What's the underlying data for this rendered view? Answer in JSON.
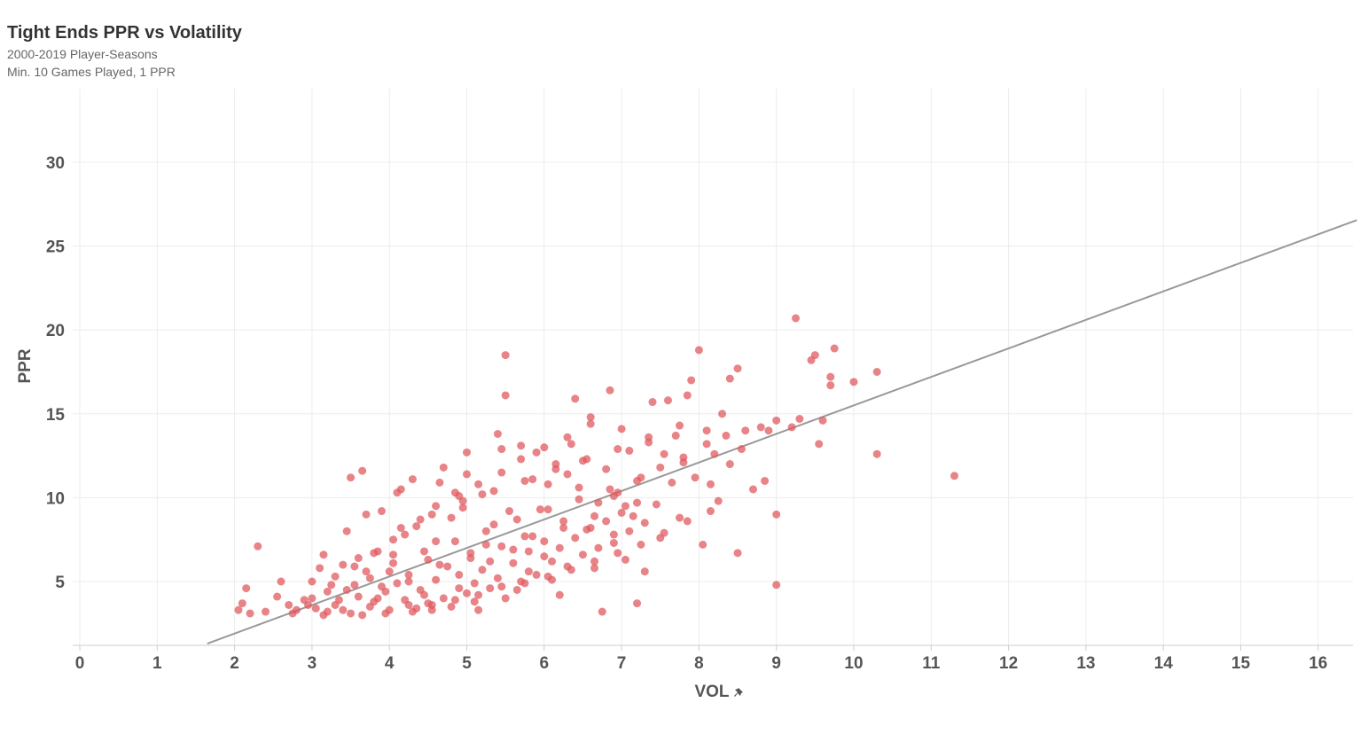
{
  "header": {
    "title": "Tight Ends PPR vs Volatility",
    "subtitle_line1": "2000-2019 Player-Seasons",
    "subtitle_line2": "Min. 10 Games Played, 1 PPR"
  },
  "colors": {
    "point": "#e05a5f",
    "trend_line": "#999999",
    "grid": "#ececec",
    "axis": "#cccccc",
    "text": "#555555"
  },
  "icons": {
    "xlabel_pin": "pin-icon"
  },
  "chart_data": {
    "type": "scatter",
    "title": "Tight Ends PPR vs Volatility",
    "subtitle": "2000-2019 Player-Seasons / Min. 10 Games Played, 1 PPR",
    "xlabel": "VOL",
    "ylabel": "PPR",
    "xlim": [
      0,
      16.5
    ],
    "ylim": [
      1.3,
      33
    ],
    "xticks": [
      "0",
      "1",
      "2",
      "3",
      "4",
      "5",
      "6",
      "7",
      "8",
      "9",
      "10",
      "11",
      "12",
      "13",
      "14",
      "15",
      "16"
    ],
    "yticks": [
      "5",
      "10",
      "15",
      "20",
      "25",
      "30"
    ],
    "grid": true,
    "legend": "none",
    "trend_line": {
      "slope": 1.7,
      "intercept": -1.5
    },
    "points": [
      [
        2.3,
        7.1
      ],
      [
        2.15,
        4.6
      ],
      [
        2.1,
        3.7
      ],
      [
        2.2,
        3.1
      ],
      [
        2.05,
        3.3
      ],
      [
        2.4,
        3.2
      ],
      [
        2.55,
        4.1
      ],
      [
        2.6,
        5.0
      ],
      [
        2.7,
        3.6
      ],
      [
        2.8,
        3.3
      ],
      [
        2.9,
        3.9
      ],
      [
        3.0,
        5.0
      ],
      [
        3.1,
        5.8
      ],
      [
        3.15,
        6.6
      ],
      [
        3.05,
        3.4
      ],
      [
        3.2,
        4.4
      ],
      [
        3.3,
        3.6
      ],
      [
        3.4,
        6.0
      ],
      [
        3.45,
        8.0
      ],
      [
        3.5,
        11.2
      ],
      [
        3.55,
        4.8
      ],
      [
        3.6,
        6.4
      ],
      [
        3.65,
        11.6
      ],
      [
        3.7,
        9.0
      ],
      [
        3.75,
        5.2
      ],
      [
        3.8,
        3.8
      ],
      [
        3.85,
        6.8
      ],
      [
        3.9,
        9.2
      ],
      [
        3.95,
        4.4
      ],
      [
        4.0,
        5.6
      ],
      [
        4.05,
        6.6
      ],
      [
        4.1,
        10.3
      ],
      [
        4.15,
        10.5
      ],
      [
        4.2,
        7.8
      ],
      [
        4.25,
        5.0
      ],
      [
        4.3,
        11.1
      ],
      [
        4.35,
        3.4
      ],
      [
        4.4,
        8.7
      ],
      [
        4.45,
        4.2
      ],
      [
        4.5,
        6.3
      ],
      [
        4.55,
        3.6
      ],
      [
        4.6,
        7.4
      ],
      [
        4.65,
        10.9
      ],
      [
        4.7,
        11.8
      ],
      [
        4.75,
        5.9
      ],
      [
        4.8,
        8.8
      ],
      [
        4.85,
        10.3
      ],
      [
        4.9,
        4.6
      ],
      [
        4.95,
        9.4
      ],
      [
        5.0,
        11.4
      ],
      [
        5.0,
        12.7
      ],
      [
        5.05,
        6.7
      ],
      [
        5.1,
        4.9
      ],
      [
        5.15,
        3.3
      ],
      [
        5.2,
        10.2
      ],
      [
        5.25,
        7.2
      ],
      [
        5.3,
        6.2
      ],
      [
        5.35,
        8.4
      ],
      [
        5.4,
        13.8
      ],
      [
        5.45,
        12.9
      ],
      [
        5.5,
        18.5
      ],
      [
        5.5,
        16.1
      ],
      [
        5.55,
        9.2
      ],
      [
        5.6,
        6.9
      ],
      [
        5.65,
        4.5
      ],
      [
        5.7,
        13.1
      ],
      [
        5.75,
        7.7
      ],
      [
        5.8,
        5.6
      ],
      [
        5.85,
        11.1
      ],
      [
        5.9,
        12.7
      ],
      [
        5.95,
        9.3
      ],
      [
        6.0,
        7.4
      ],
      [
        6.05,
        10.8
      ],
      [
        6.1,
        6.2
      ],
      [
        6.15,
        12.0
      ],
      [
        6.2,
        4.2
      ],
      [
        6.25,
        8.6
      ],
      [
        6.3,
        11.4
      ],
      [
        6.35,
        13.2
      ],
      [
        6.4,
        15.9
      ],
      [
        6.45,
        10.6
      ],
      [
        6.5,
        12.2
      ],
      [
        6.55,
        8.1
      ],
      [
        6.6,
        14.8
      ],
      [
        6.65,
        5.8
      ],
      [
        6.7,
        9.7
      ],
      [
        6.75,
        3.2
      ],
      [
        6.8,
        11.7
      ],
      [
        6.85,
        16.4
      ],
      [
        6.9,
        7.8
      ],
      [
        6.95,
        10.3
      ],
      [
        7.0,
        14.1
      ],
      [
        7.05,
        6.3
      ],
      [
        7.1,
        12.8
      ],
      [
        7.15,
        8.9
      ],
      [
        7.2,
        3.7
      ],
      [
        7.25,
        11.2
      ],
      [
        7.3,
        5.6
      ],
      [
        7.35,
        13.3
      ],
      [
        7.4,
        15.7
      ],
      [
        7.45,
        9.6
      ],
      [
        7.5,
        7.6
      ],
      [
        7.55,
        12.6
      ],
      [
        7.6,
        15.8
      ],
      [
        7.65,
        10.9
      ],
      [
        7.7,
        13.7
      ],
      [
        7.75,
        8.8
      ],
      [
        7.8,
        12.1
      ],
      [
        7.85,
        16.1
      ],
      [
        7.9,
        17.0
      ],
      [
        7.95,
        11.2
      ],
      [
        8.0,
        18.8
      ],
      [
        8.05,
        7.2
      ],
      [
        8.1,
        14.0
      ],
      [
        8.15,
        10.8
      ],
      [
        8.2,
        12.6
      ],
      [
        8.25,
        9.8
      ],
      [
        8.3,
        15.0
      ],
      [
        8.35,
        13.7
      ],
      [
        8.4,
        17.1
      ],
      [
        8.5,
        17.7
      ],
      [
        8.5,
        6.7
      ],
      [
        8.55,
        12.9
      ],
      [
        8.6,
        14.0
      ],
      [
        8.7,
        10.5
      ],
      [
        8.8,
        14.2
      ],
      [
        8.85,
        11.0
      ],
      [
        8.9,
        14.0
      ],
      [
        9.0,
        9.0
      ],
      [
        9.0,
        4.8
      ],
      [
        9.0,
        14.6
      ],
      [
        9.2,
        14.2
      ],
      [
        9.25,
        20.7
      ],
      [
        9.3,
        14.7
      ],
      [
        9.45,
        18.2
      ],
      [
        9.5,
        18.5
      ],
      [
        9.55,
        13.2
      ],
      [
        9.6,
        14.6
      ],
      [
        9.7,
        17.2
      ],
      [
        9.7,
        16.7
      ],
      [
        9.75,
        18.9
      ],
      [
        10.0,
        16.9
      ],
      [
        10.3,
        17.5
      ],
      [
        10.3,
        12.6
      ],
      [
        11.3,
        11.3
      ],
      [
        3.2,
        3.2
      ],
      [
        3.35,
        3.9
      ],
      [
        3.5,
        3.1
      ],
      [
        3.6,
        4.1
      ],
      [
        3.75,
        3.5
      ],
      [
        3.9,
        4.7
      ],
      [
        4.0,
        3.3
      ],
      [
        4.1,
        4.9
      ],
      [
        4.2,
        3.9
      ],
      [
        4.3,
        3.2
      ],
      [
        4.4,
        4.5
      ],
      [
        4.5,
        3.7
      ],
      [
        4.6,
        5.1
      ],
      [
        4.7,
        4.0
      ],
      [
        4.8,
        3.5
      ],
      [
        4.9,
        5.4
      ],
      [
        5.0,
        4.3
      ],
      [
        5.1,
        3.8
      ],
      [
        5.2,
        5.7
      ],
      [
        5.3,
        4.6
      ],
      [
        5.4,
        5.2
      ],
      [
        5.5,
        4.0
      ],
      [
        5.6,
        6.1
      ],
      [
        5.7,
        5.0
      ],
      [
        5.8,
        6.8
      ],
      [
        5.9,
        5.4
      ],
      [
        6.0,
        6.5
      ],
      [
        6.1,
        5.1
      ],
      [
        6.2,
        7.0
      ],
      [
        6.3,
        5.9
      ],
      [
        6.4,
        7.6
      ],
      [
        6.5,
        6.6
      ],
      [
        6.6,
        8.2
      ],
      [
        6.7,
        7.0
      ],
      [
        6.8,
        8.6
      ],
      [
        6.9,
        7.3
      ],
      [
        7.0,
        9.1
      ],
      [
        7.1,
        8.0
      ],
      [
        7.2,
        9.7
      ],
      [
        7.3,
        8.5
      ],
      [
        3.3,
        5.3
      ],
      [
        3.45,
        4.5
      ],
      [
        3.7,
        5.6
      ],
      [
        3.85,
        4.0
      ],
      [
        4.05,
        6.1
      ],
      [
        4.25,
        5.4
      ],
      [
        4.45,
        6.8
      ],
      [
        4.65,
        6.0
      ],
      [
        4.85,
        7.4
      ],
      [
        5.05,
        6.4
      ],
      [
        5.25,
        8.0
      ],
      [
        5.45,
        7.1
      ],
      [
        5.65,
        8.7
      ],
      [
        5.85,
        7.7
      ],
      [
        6.05,
        9.3
      ],
      [
        6.25,
        8.2
      ],
      [
        6.45,
        9.9
      ],
      [
        6.65,
        8.9
      ],
      [
        6.85,
        10.5
      ],
      [
        7.05,
        9.5
      ],
      [
        4.15,
        8.2
      ],
      [
        4.55,
        9.0
      ],
      [
        4.95,
        9.8
      ],
      [
        5.35,
        10.4
      ],
      [
        5.75,
        11.0
      ],
      [
        6.15,
        11.7
      ],
      [
        6.55,
        12.3
      ],
      [
        6.95,
        12.9
      ],
      [
        7.35,
        13.6
      ],
      [
        7.75,
        14.3
      ],
      [
        3.0,
        4.0
      ],
      [
        3.25,
        4.8
      ],
      [
        3.55,
        5.9
      ],
      [
        3.8,
        6.7
      ],
      [
        4.05,
        7.5
      ],
      [
        4.35,
        8.3
      ],
      [
        4.6,
        9.5
      ],
      [
        4.9,
        10.1
      ],
      [
        5.15,
        10.8
      ],
      [
        5.45,
        11.5
      ],
      [
        5.7,
        12.3
      ],
      [
        6.0,
        13.0
      ],
      [
        6.3,
        13.6
      ],
      [
        6.6,
        14.4
      ],
      [
        6.9,
        10.1
      ],
      [
        7.2,
        11.0
      ],
      [
        7.5,
        11.8
      ],
      [
        7.8,
        12.4
      ],
      [
        8.1,
        13.2
      ],
      [
        8.4,
        12.0
      ],
      [
        2.75,
        3.1
      ],
      [
        2.95,
        3.6
      ],
      [
        3.15,
        3.0
      ],
      [
        3.4,
        3.3
      ],
      [
        3.65,
        3.0
      ],
      [
        3.95,
        3.1
      ],
      [
        4.25,
        3.6
      ],
      [
        4.55,
        3.3
      ],
      [
        4.85,
        3.9
      ],
      [
        5.15,
        4.2
      ],
      [
        5.45,
        4.7
      ],
      [
        5.75,
        4.9
      ],
      [
        6.05,
        5.3
      ],
      [
        6.35,
        5.7
      ],
      [
        6.65,
        6.2
      ],
      [
        6.95,
        6.7
      ],
      [
        7.25,
        7.2
      ],
      [
        7.55,
        7.9
      ],
      [
        7.85,
        8.6
      ],
      [
        8.15,
        9.2
      ]
    ]
  }
}
